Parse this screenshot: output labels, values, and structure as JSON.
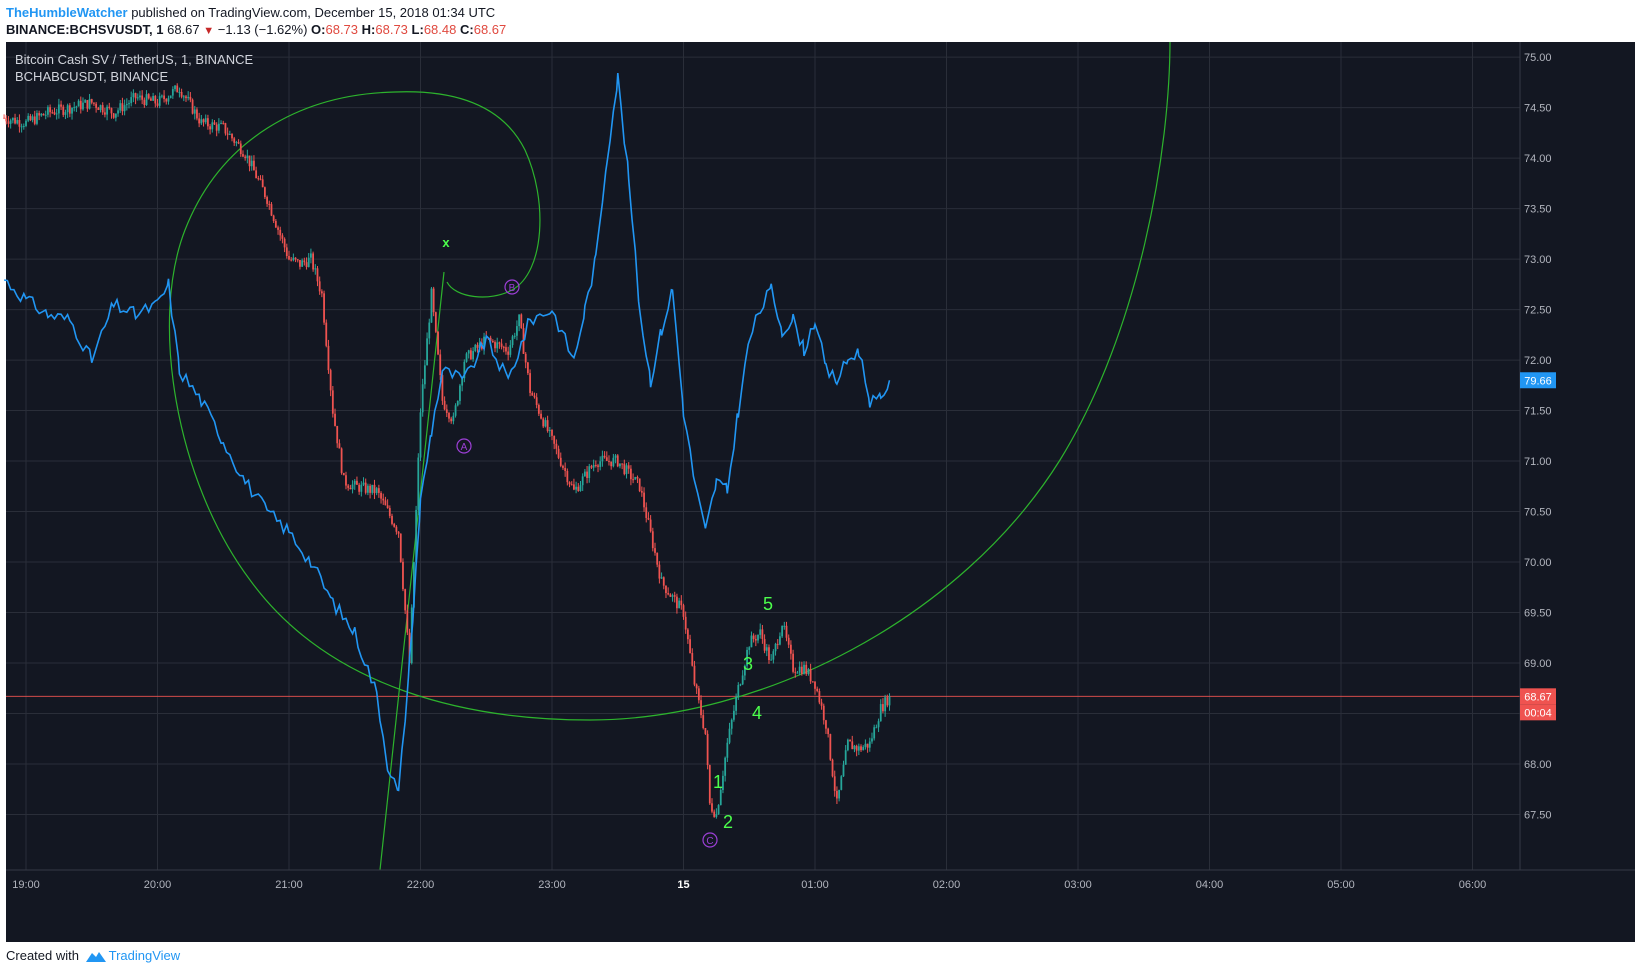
{
  "header": {
    "author": "TheHumbleWatcher",
    "published_text": " published on TradingView.com, December 15, 2018 01:34 UTC",
    "symbol": "BINANCE:BCHSVUSDT, 1",
    "last": "68.67",
    "change": "−1.13 (−1.62%)",
    "o_label": "O:",
    "o": "68.73",
    "h_label": "H:",
    "h": "68.73",
    "l_label": "L:",
    "l": "68.48",
    "c_label": "C:",
    "c": "68.67"
  },
  "legend": {
    "main": "Bitcoin Cash SV / TetherUS, 1, BINANCE",
    "compare": "BCHABCUSDT, BINANCE"
  },
  "footer": {
    "created": "Created with",
    "brand": "TradingView"
  },
  "colors": {
    "background": "#131722",
    "grid": "#2a2e39",
    "up": "#26a69a",
    "down": "#ef5350",
    "compare_line": "#2196f3",
    "drawing": "#2db32d",
    "marker": "#9c3fd6",
    "wave_label": "#4cff4c",
    "price_badge": "#ef5350",
    "compare_badge": "#2196f3"
  },
  "chart_data": {
    "type": "line",
    "x_ticks": [
      "19:00",
      "20:00",
      "21:00",
      "22:00",
      "23:00",
      "15",
      "01:00",
      "02:00",
      "03:00",
      "04:00",
      "05:00",
      "06:00"
    ],
    "y_ticks": [
      "75.00",
      "74.50",
      "74.00",
      "73.50",
      "73.00",
      "72.50",
      "72.00",
      "71.50",
      "71.00",
      "70.50",
      "70.00",
      "69.50",
      "69.00",
      "68.50",
      "68.00",
      "67.50"
    ],
    "ylim": [
      66.95,
      75.15
    ],
    "grid": true,
    "series": [
      {
        "name": "Bitcoin Cash SV / TetherUS, 1, BINANCE",
        "style": "candles",
        "x": [
          "18:50",
          "19:00",
          "19:10",
          "19:20",
          "19:30",
          "19:40",
          "19:50",
          "20:00",
          "20:10",
          "20:20",
          "20:30",
          "20:40",
          "20:50",
          "21:00",
          "21:05",
          "21:10",
          "21:15",
          "21:20",
          "21:25",
          "21:30",
          "21:40",
          "21:50",
          "21:55",
          "22:00",
          "22:05",
          "22:10",
          "22:15",
          "22:20",
          "22:30",
          "22:40",
          "22:45",
          "22:50",
          "23:00",
          "23:10",
          "23:20",
          "23:30",
          "23:40",
          "23:50",
          "00:00",
          "00:05",
          "00:10",
          "00:12",
          "00:15",
          "00:20",
          "00:25",
          "00:30",
          "00:35",
          "00:40",
          "00:45",
          "00:50",
          "00:55",
          "01:00",
          "01:05",
          "01:10",
          "01:15",
          "01:20",
          "01:25",
          "01:30",
          "01:34"
        ],
        "values": [
          74.4,
          74.35,
          74.45,
          74.5,
          74.55,
          74.45,
          74.6,
          74.55,
          74.7,
          74.35,
          74.3,
          74.05,
          73.6,
          73.0,
          72.95,
          73.0,
          72.65,
          71.5,
          70.8,
          70.75,
          70.7,
          70.3,
          69.0,
          71.5,
          72.65,
          71.6,
          71.4,
          72.0,
          72.2,
          72.1,
          72.4,
          71.7,
          71.2,
          70.7,
          71.0,
          71.0,
          70.75,
          69.8,
          69.5,
          68.8,
          68.3,
          67.6,
          67.5,
          68.2,
          68.75,
          69.2,
          69.3,
          69.0,
          69.4,
          68.95,
          68.95,
          68.8,
          68.4,
          67.6,
          68.2,
          68.15,
          68.2,
          68.55,
          68.67
        ]
      },
      {
        "name": "BCHABCUSDT, BINANCE",
        "style": "line",
        "x": [
          "18:50",
          "19:00",
          "19:10",
          "19:20",
          "19:30",
          "19:40",
          "19:50",
          "20:00",
          "20:05",
          "20:10",
          "20:20",
          "20:30",
          "20:40",
          "20:50",
          "21:00",
          "21:10",
          "21:20",
          "21:30",
          "21:40",
          "21:45",
          "21:50",
          "21:55",
          "22:00",
          "22:05",
          "22:10",
          "22:20",
          "22:30",
          "22:40",
          "22:50",
          "23:00",
          "23:10",
          "23:15",
          "23:20",
          "23:25",
          "23:30",
          "23:35",
          "23:40",
          "23:45",
          "23:50",
          "23:55",
          "00:00",
          "00:05",
          "00:10",
          "00:15",
          "00:20",
          "00:25",
          "00:30",
          "00:35",
          "00:40",
          "00:45",
          "00:50",
          "00:55",
          "01:00",
          "01:05",
          "01:10",
          "01:15",
          "01:20",
          "01:25",
          "01:30",
          "01:34"
        ],
        "values": [
          72.8,
          72.6,
          72.45,
          72.4,
          72.0,
          72.55,
          72.45,
          72.55,
          72.75,
          71.9,
          71.6,
          71.2,
          70.8,
          70.5,
          70.3,
          70.0,
          69.6,
          69.3,
          68.7,
          68.0,
          67.7,
          69.0,
          70.6,
          71.3,
          71.9,
          71.8,
          72.2,
          71.8,
          72.4,
          72.5,
          72.0,
          72.5,
          73.0,
          74.0,
          74.8,
          73.8,
          72.5,
          71.8,
          72.3,
          72.7,
          71.5,
          70.8,
          70.3,
          70.8,
          70.7,
          71.5,
          72.2,
          72.5,
          72.7,
          72.3,
          72.4,
          72.1,
          72.4,
          71.9,
          71.8,
          72.0,
          72.1,
          71.6,
          71.6,
          71.8
        ]
      }
    ],
    "price_badge": "68.67",
    "timer_badge": "00:04",
    "compare_badge": "79.66",
    "annotations": {
      "x_mark": "x",
      "abc": [
        "A",
        "B",
        "C"
      ],
      "waves": [
        "1",
        "2",
        "3",
        "4",
        "5"
      ]
    }
  }
}
